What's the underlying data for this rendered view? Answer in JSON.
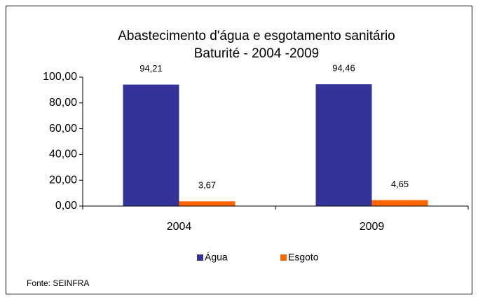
{
  "chart_data": {
    "type": "bar",
    "title": "Abastecimento d'água e esgotamento sanitário",
    "subtitle": "Baturité  - 2004 -2009",
    "categories": [
      "2004",
      "2009"
    ],
    "series": [
      {
        "name": "Água",
        "color": "#333399",
        "values": [
          94.21,
          94.46
        ],
        "value_labels": [
          "94,21",
          "94,46"
        ]
      },
      {
        "name": "Esgoto",
        "color": "#ff6600",
        "values": [
          3.67,
          4.65
        ],
        "value_labels": [
          "3,67",
          "4,65"
        ]
      }
    ],
    "ylim": [
      0,
      100
    ],
    "yticks": [
      {
        "value": 0,
        "label": "0,00"
      },
      {
        "value": 20,
        "label": "20,00"
      },
      {
        "value": 40,
        "label": "40,00"
      },
      {
        "value": 60,
        "label": "60,00"
      },
      {
        "value": 80,
        "label": "80,00"
      },
      {
        "value": 100,
        "label": "100,00"
      }
    ],
    "grid": false,
    "legend": "bottom",
    "source": "Fonte: SEINFRA"
  }
}
